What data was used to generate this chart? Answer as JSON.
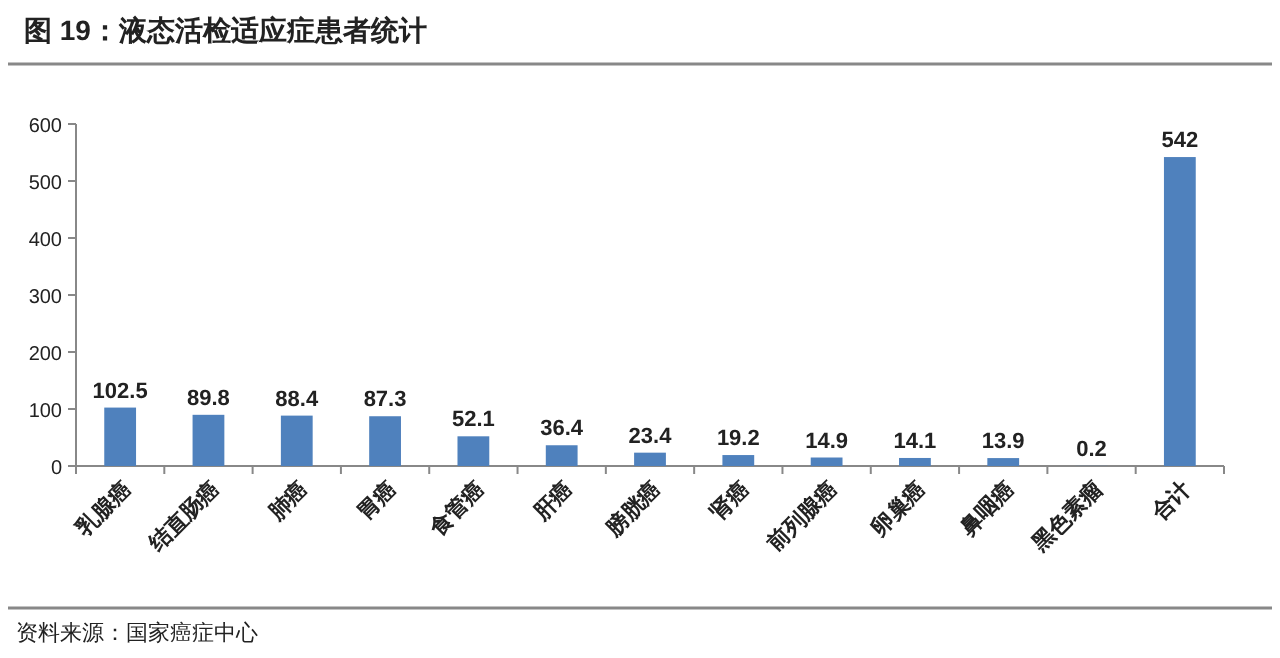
{
  "chart_data": {
    "type": "bar",
    "title": "图 19：液态活检适应症患者统计",
    "categories": [
      "乳腺癌",
      "结直肠癌",
      "肺癌",
      "胃癌",
      "食管癌",
      "肝癌",
      "膀胱癌",
      "肾癌",
      "前列腺癌",
      "卵巢癌",
      "鼻咽癌",
      "黑色素瘤",
      "合计"
    ],
    "values": [
      102.5,
      89.8,
      88.4,
      87.3,
      52.1,
      36.4,
      23.4,
      19.2,
      14.9,
      14.1,
      13.9,
      0.2,
      542
    ],
    "color": "#4f81bd",
    "ylim": [
      0,
      600
    ],
    "yticks": [
      0,
      100,
      200,
      300,
      400,
      500,
      600
    ],
    "data_labels": true,
    "grid": false,
    "annotations": [
      "资料来源：国家癌症中心"
    ]
  }
}
